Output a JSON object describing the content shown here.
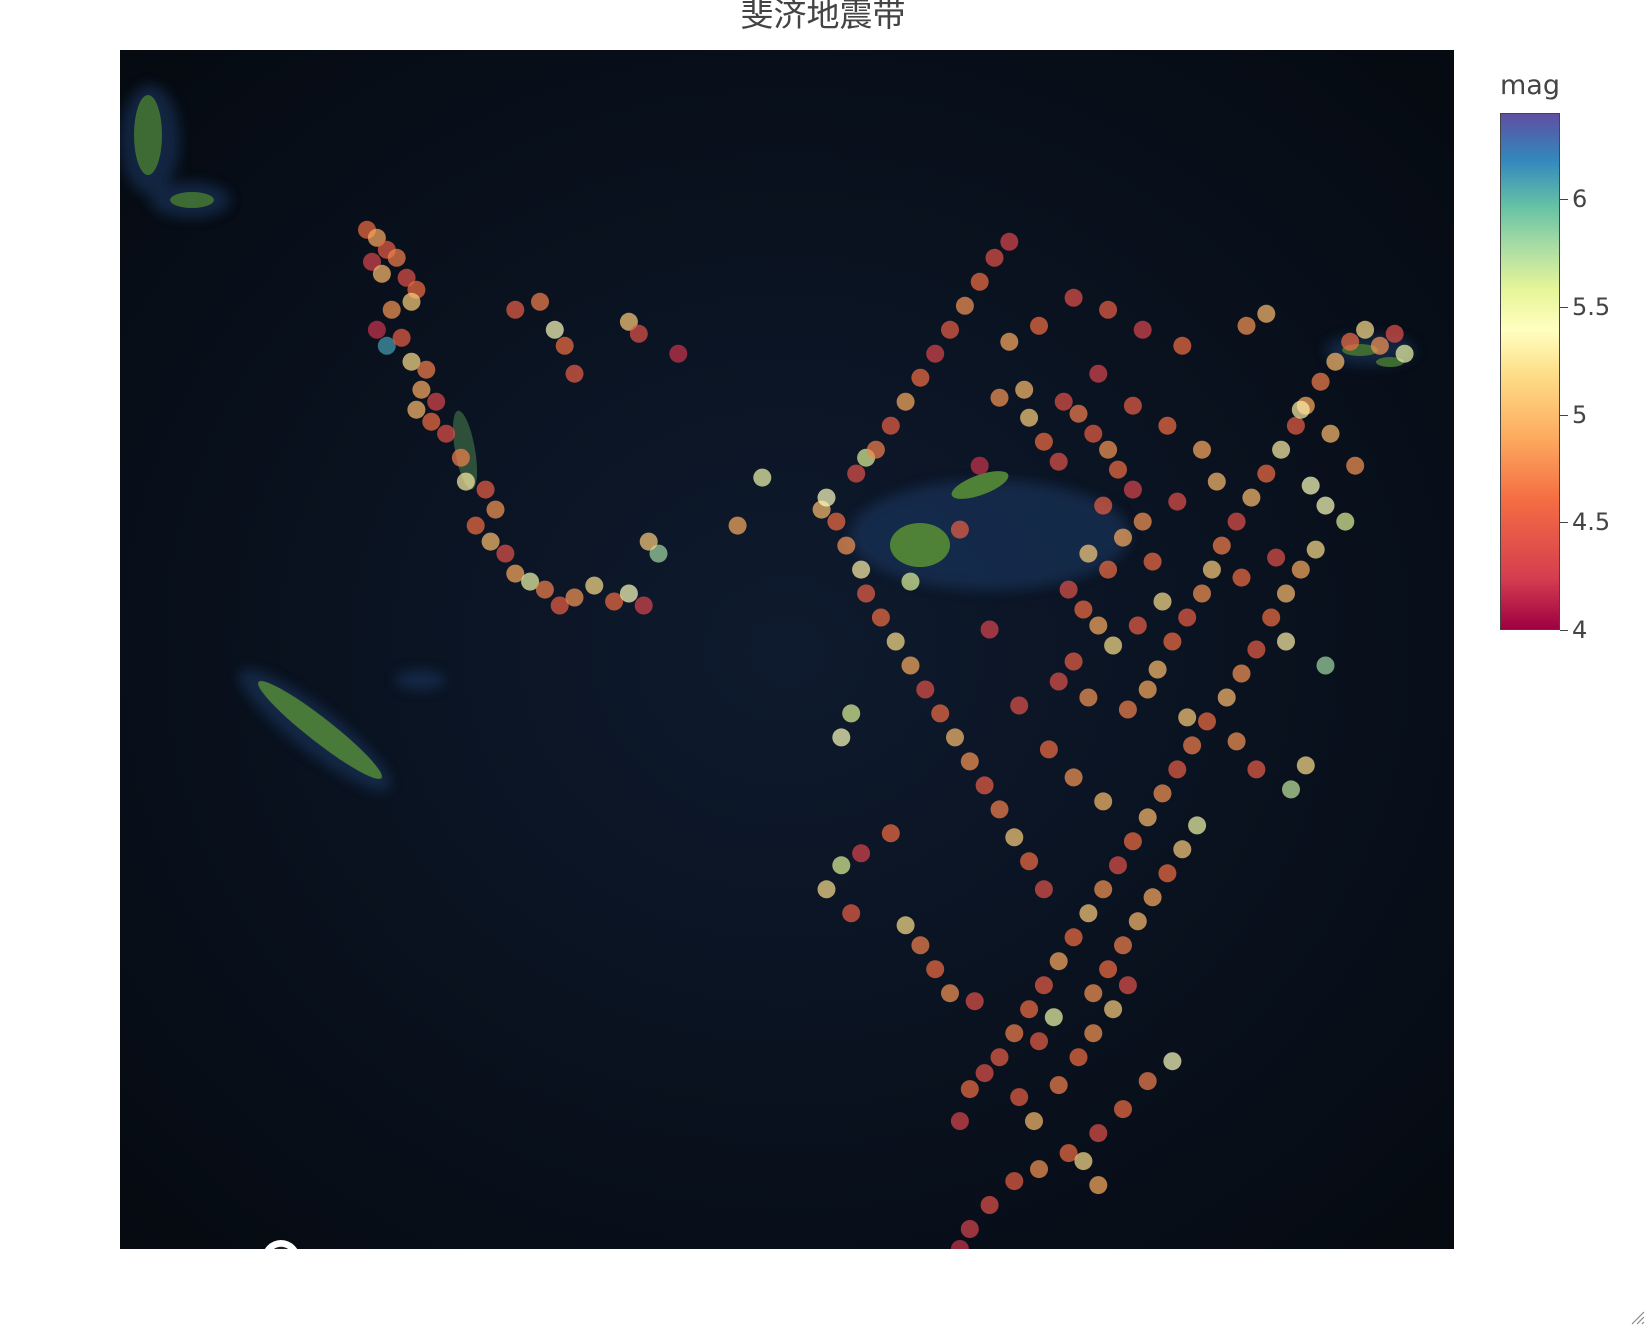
{
  "title": "斐济地震带",
  "colorbar": {
    "title": "mag",
    "ticks": [
      "4",
      "4.5",
      "5",
      "5.5",
      "6"
    ],
    "range": [
      4,
      6.4
    ]
  },
  "icons": {
    "map_logo": "map-logo-icon",
    "info": "info-icon"
  },
  "colors": {
    "ocean": "#0a1120",
    "land": "#4a7a3a",
    "shallow": "#1e3a66"
  },
  "chart_data": {
    "type": "scatter",
    "title": "斐济地震带",
    "colorscale": "Spectral",
    "color_field": "mag",
    "x_field": "lon",
    "y_field": "lat",
    "extent": {
      "lon": [
        162,
        189
      ],
      "lat": [
        -40,
        -10
      ]
    },
    "points": [
      [
        167.0,
        -14.5,
        4.6
      ],
      [
        167.2,
        -14.7,
        4.9
      ],
      [
        167.4,
        -15.0,
        4.5
      ],
      [
        167.1,
        -15.3,
        4.3
      ],
      [
        167.3,
        -15.6,
        5.0
      ],
      [
        167.6,
        -15.2,
        4.7
      ],
      [
        167.8,
        -15.7,
        4.4
      ],
      [
        168.0,
        -16.0,
        4.6
      ],
      [
        167.9,
        -16.3,
        5.1
      ],
      [
        167.5,
        -16.5,
        4.8
      ],
      [
        167.2,
        -17.0,
        4.2
      ],
      [
        167.4,
        -17.4,
        6.1
      ],
      [
        167.7,
        -17.2,
        4.5
      ],
      [
        167.9,
        -17.8,
        5.2
      ],
      [
        168.2,
        -18.0,
        4.7
      ],
      [
        168.1,
        -18.5,
        4.9
      ],
      [
        168.4,
        -18.8,
        4.3
      ],
      [
        168.0,
        -19.0,
        5.0
      ],
      [
        168.3,
        -19.3,
        4.6
      ],
      [
        168.6,
        -19.6,
        4.4
      ],
      [
        168.9,
        -20.2,
        4.7
      ],
      [
        169.0,
        -20.8,
        5.3
      ],
      [
        169.4,
        -21.0,
        4.5
      ],
      [
        169.6,
        -21.5,
        4.8
      ],
      [
        169.2,
        -21.9,
        4.6
      ],
      [
        169.5,
        -22.3,
        5.0
      ],
      [
        169.8,
        -22.6,
        4.4
      ],
      [
        170.0,
        -23.1,
        4.9
      ],
      [
        170.3,
        -23.3,
        5.5
      ],
      [
        170.6,
        -23.5,
        4.7
      ],
      [
        170.9,
        -23.9,
        4.5
      ],
      [
        171.2,
        -23.7,
        4.8
      ],
      [
        171.6,
        -23.4,
        5.2
      ],
      [
        172.0,
        -23.8,
        4.6
      ],
      [
        172.3,
        -23.6,
        5.4
      ],
      [
        172.6,
        -23.9,
        4.3
      ],
      [
        170.0,
        -16.5,
        4.5
      ],
      [
        170.5,
        -16.3,
        4.7
      ],
      [
        170.8,
        -17.0,
        5.4
      ],
      [
        171.0,
        -17.4,
        4.6
      ],
      [
        171.2,
        -18.1,
        4.5
      ],
      [
        172.3,
        -16.8,
        5.1
      ],
      [
        172.5,
        -17.1,
        4.4
      ],
      [
        173.3,
        -17.6,
        4.2
      ],
      [
        172.9,
        -22.6,
        5.8
      ],
      [
        172.7,
        -22.3,
        5.1
      ],
      [
        175.0,
        -20.7,
        5.5
      ],
      [
        174.5,
        -21.9,
        4.9
      ],
      [
        177.1,
        -20.2,
        5.6
      ],
      [
        176.2,
        -21.5,
        5.0
      ],
      [
        180.3,
        -18.5,
        5.0
      ],
      [
        181.1,
        -18.8,
        4.4
      ],
      [
        181.4,
        -19.1,
        4.7
      ],
      [
        181.7,
        -19.6,
        4.5
      ],
      [
        182.0,
        -20.0,
        4.8
      ],
      [
        182.2,
        -20.5,
        4.6
      ],
      [
        182.5,
        -21.0,
        4.3
      ],
      [
        181.9,
        -21.4,
        4.5
      ],
      [
        182.7,
        -21.8,
        4.8
      ],
      [
        182.3,
        -22.2,
        4.9
      ],
      [
        181.6,
        -22.6,
        5.1
      ],
      [
        182.0,
        -23.0,
        4.6
      ],
      [
        181.2,
        -23.5,
        4.4
      ],
      [
        181.5,
        -24.0,
        4.6
      ],
      [
        181.8,
        -24.4,
        4.9
      ],
      [
        182.1,
        -24.9,
        5.2
      ],
      [
        181.3,
        -25.3,
        4.5
      ],
      [
        181.0,
        -25.8,
        4.4
      ],
      [
        181.6,
        -26.2,
        4.8
      ],
      [
        182.4,
        -26.5,
        4.7
      ],
      [
        182.8,
        -26.0,
        4.9
      ],
      [
        183.0,
        -25.5,
        5.0
      ],
      [
        183.3,
        -24.8,
        4.6
      ],
      [
        183.6,
        -24.2,
        4.5
      ],
      [
        183.9,
        -23.6,
        4.8
      ],
      [
        184.1,
        -23.0,
        5.1
      ],
      [
        184.3,
        -22.4,
        4.7
      ],
      [
        184.6,
        -21.8,
        4.4
      ],
      [
        184.9,
        -21.2,
        5.0
      ],
      [
        185.2,
        -20.6,
        4.6
      ],
      [
        185.5,
        -20.0,
        5.3
      ],
      [
        185.8,
        -19.4,
        4.5
      ],
      [
        186.0,
        -18.9,
        4.9
      ],
      [
        186.3,
        -18.3,
        4.7
      ],
      [
        186.6,
        -17.8,
        5.0
      ],
      [
        186.9,
        -17.3,
        4.6
      ],
      [
        187.2,
        -17.0,
        5.2
      ],
      [
        187.5,
        -17.4,
        4.8
      ],
      [
        187.8,
        -17.1,
        4.4
      ],
      [
        188.0,
        -17.6,
        5.5
      ],
      [
        186.4,
        -21.4,
        5.4
      ],
      [
        186.8,
        -21.8,
        5.6
      ],
      [
        186.2,
        -22.5,
        5.2
      ],
      [
        185.9,
        -23.0,
        4.9
      ],
      [
        185.6,
        -23.6,
        5.0
      ],
      [
        185.3,
        -24.2,
        4.6
      ],
      [
        185.6,
        -24.8,
        5.3
      ],
      [
        186.4,
        -25.4,
        5.8
      ],
      [
        185.0,
        -25.0,
        4.5
      ],
      [
        184.7,
        -25.6,
        4.8
      ],
      [
        184.4,
        -26.2,
        5.0
      ],
      [
        184.0,
        -26.8,
        4.6
      ],
      [
        183.7,
        -27.4,
        4.7
      ],
      [
        183.4,
        -28.0,
        4.5
      ],
      [
        183.1,
        -28.6,
        4.8
      ],
      [
        182.8,
        -29.2,
        5.0
      ],
      [
        182.5,
        -29.8,
        4.6
      ],
      [
        182.2,
        -30.4,
        4.4
      ],
      [
        181.9,
        -31.0,
        4.8
      ],
      [
        181.6,
        -31.6,
        5.1
      ],
      [
        181.3,
        -32.2,
        4.6
      ],
      [
        181.0,
        -32.8,
        4.9
      ],
      [
        180.7,
        -33.4,
        4.5
      ],
      [
        180.4,
        -34.0,
        4.6
      ],
      [
        180.1,
        -34.6,
        4.7
      ],
      [
        179.8,
        -35.2,
        4.5
      ],
      [
        179.5,
        -35.6,
        4.4
      ],
      [
        179.2,
        -36.0,
        4.6
      ],
      [
        179.0,
        -36.8,
        4.3
      ],
      [
        180.7,
        -31.0,
        4.4
      ],
      [
        180.4,
        -30.3,
        4.6
      ],
      [
        180.1,
        -29.7,
        5.1
      ],
      [
        179.8,
        -29.0,
        4.7
      ],
      [
        179.5,
        -28.4,
        4.5
      ],
      [
        179.2,
        -27.8,
        4.8
      ],
      [
        178.9,
        -27.2,
        5.0
      ],
      [
        178.6,
        -26.6,
        4.6
      ],
      [
        178.3,
        -26.0,
        4.4
      ],
      [
        178.0,
        -25.4,
        4.9
      ],
      [
        177.7,
        -24.8,
        5.2
      ],
      [
        177.4,
        -24.2,
        4.6
      ],
      [
        177.1,
        -23.6,
        4.5
      ],
      [
        177.0,
        -23.0,
        5.3
      ],
      [
        176.7,
        -22.4,
        4.8
      ],
      [
        176.5,
        -21.8,
        4.6
      ],
      [
        176.3,
        -21.2,
        5.4
      ],
      [
        176.9,
        -20.6,
        4.4
      ],
      [
        177.3,
        -20.0,
        4.7
      ],
      [
        177.6,
        -19.4,
        4.5
      ],
      [
        177.9,
        -18.8,
        4.9
      ],
      [
        178.2,
        -18.2,
        4.6
      ],
      [
        178.5,
        -17.6,
        4.3
      ],
      [
        178.8,
        -17.0,
        4.5
      ],
      [
        179.1,
        -16.4,
        4.8
      ],
      [
        179.4,
        -15.8,
        4.6
      ],
      [
        179.7,
        -15.2,
        4.4
      ],
      [
        180.0,
        -14.8,
        4.3
      ],
      [
        176.8,
        -26.6,
        5.6
      ],
      [
        176.6,
        -27.2,
        5.4
      ],
      [
        177.9,
        -31.9,
        5.2
      ],
      [
        178.2,
        -32.4,
        4.7
      ],
      [
        178.5,
        -33.0,
        4.6
      ],
      [
        178.8,
        -33.6,
        4.8
      ],
      [
        179.3,
        -33.8,
        4.4
      ],
      [
        183.8,
        -29.4,
        5.5
      ],
      [
        183.5,
        -30.0,
        5.1
      ],
      [
        183.2,
        -30.6,
        4.6
      ],
      [
        182.9,
        -31.2,
        4.9
      ],
      [
        182.6,
        -31.8,
        5.0
      ],
      [
        182.3,
        -32.4,
        4.7
      ],
      [
        182.0,
        -33.0,
        4.6
      ],
      [
        181.7,
        -33.6,
        4.8
      ],
      [
        180.9,
        -34.2,
        5.5
      ],
      [
        180.6,
        -34.8,
        4.5
      ],
      [
        185.7,
        -28.5,
        5.7
      ],
      [
        186.0,
        -27.9,
        5.2
      ],
      [
        179.4,
        -20.4,
        4.2
      ],
      [
        178.0,
        -23.3,
        5.6
      ],
      [
        184.8,
        -16.9,
        4.8
      ],
      [
        185.2,
        -16.6,
        5.0
      ],
      [
        183.5,
        -17.4,
        4.6
      ],
      [
        182.7,
        -17.0,
        4.3
      ],
      [
        182.0,
        -16.5,
        4.5
      ],
      [
        181.3,
        -16.2,
        4.4
      ],
      [
        180.6,
        -16.9,
        4.6
      ],
      [
        180.0,
        -17.3,
        4.9
      ],
      [
        185.9,
        -19.0,
        5.3
      ],
      [
        186.5,
        -19.6,
        5.0
      ],
      [
        187.0,
        -20.4,
        4.8
      ],
      [
        186.1,
        -20.9,
        5.4
      ],
      [
        185.4,
        -22.7,
        4.4
      ],
      [
        184.7,
        -23.2,
        4.6
      ],
      [
        183.1,
        -23.8,
        5.2
      ],
      [
        182.6,
        -24.4,
        4.5
      ],
      [
        181.0,
        -20.3,
        4.4
      ],
      [
        180.7,
        -19.8,
        4.6
      ],
      [
        180.4,
        -19.2,
        5.1
      ],
      [
        179.8,
        -18.7,
        4.8
      ],
      [
        181.8,
        -18.1,
        4.3
      ],
      [
        182.5,
        -18.9,
        4.5
      ],
      [
        183.2,
        -19.4,
        4.6
      ],
      [
        183.9,
        -20.0,
        4.9
      ],
      [
        184.2,
        -20.8,
        5.0
      ],
      [
        183.4,
        -21.3,
        4.4
      ],
      [
        182.9,
        -22.8,
        4.6
      ],
      [
        183.6,
        -26.7,
        5.1
      ],
      [
        184.6,
        -27.3,
        4.8
      ],
      [
        185.0,
        -28.0,
        4.5
      ],
      [
        179.0,
        -22.0,
        4.5
      ],
      [
        179.6,
        -24.5,
        4.3
      ],
      [
        180.2,
        -26.4,
        4.4
      ],
      [
        180.8,
        -27.5,
        4.6
      ],
      [
        181.3,
        -28.2,
        4.8
      ],
      [
        181.9,
        -28.8,
        5.0
      ],
      [
        183.3,
        -35.3,
        5.4
      ],
      [
        182.8,
        -35.8,
        4.7
      ],
      [
        182.3,
        -36.5,
        4.6
      ],
      [
        181.8,
        -37.1,
        4.4
      ],
      [
        181.2,
        -37.6,
        4.6
      ],
      [
        180.6,
        -38.0,
        4.8
      ],
      [
        180.1,
        -38.3,
        4.5
      ],
      [
        179.6,
        -38.9,
        4.4
      ],
      [
        179.2,
        -39.5,
        4.3
      ],
      [
        179.0,
        -40.0,
        4.2
      ],
      [
        181.5,
        -37.8,
        5.2
      ],
      [
        181.8,
        -38.4,
        4.9
      ],
      [
        180.2,
        -36.2,
        4.5
      ],
      [
        180.5,
        -36.8,
        5.0
      ],
      [
        181.0,
        -35.9,
        4.7
      ],
      [
        181.4,
        -35.2,
        4.6
      ],
      [
        181.7,
        -34.6,
        4.8
      ],
      [
        182.1,
        -34.0,
        5.1
      ],
      [
        182.4,
        -33.4,
        4.4
      ],
      [
        177.6,
        -29.6,
        4.6
      ],
      [
        177.0,
        -30.1,
        4.3
      ],
      [
        176.6,
        -30.4,
        5.6
      ],
      [
        176.3,
        -31.0,
        5.2
      ],
      [
        176.8,
        -31.6,
        4.5
      ]
    ]
  }
}
